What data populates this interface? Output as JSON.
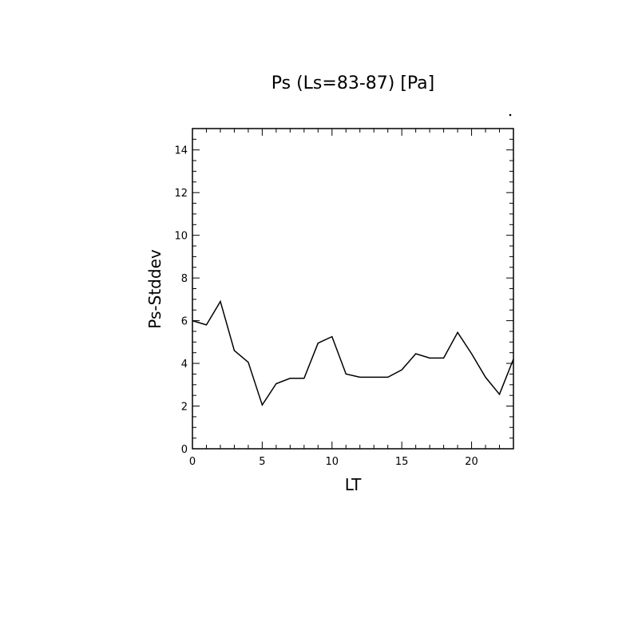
{
  "chart_data": {
    "type": "line",
    "title": "Ps (Ls=83-87) [Pa]",
    "xlabel": "LT",
    "ylabel": "Ps-Stddev",
    "xlim": [
      0,
      23
    ],
    "ylim": [
      0,
      15
    ],
    "xticks": [
      0,
      5,
      10,
      15,
      20
    ],
    "yticks": [
      0,
      2,
      4,
      6,
      8,
      10,
      12,
      14
    ],
    "grid": false,
    "series": [
      {
        "x": [
          0,
          1,
          2,
          3,
          4,
          5,
          6,
          7,
          8,
          9,
          10,
          11,
          12,
          13,
          14,
          15,
          16,
          17,
          18,
          19,
          20,
          21,
          22,
          23
        ],
        "values": [
          6.0,
          5.8,
          6.9,
          4.6,
          4.05,
          2.05,
          3.05,
          3.3,
          3.3,
          4.95,
          5.25,
          3.5,
          3.35,
          3.35,
          3.35,
          3.7,
          4.45,
          4.25,
          4.25,
          5.45,
          4.45,
          3.35,
          2.55,
          4.2
        ]
      }
    ],
    "color": "#000000"
  }
}
